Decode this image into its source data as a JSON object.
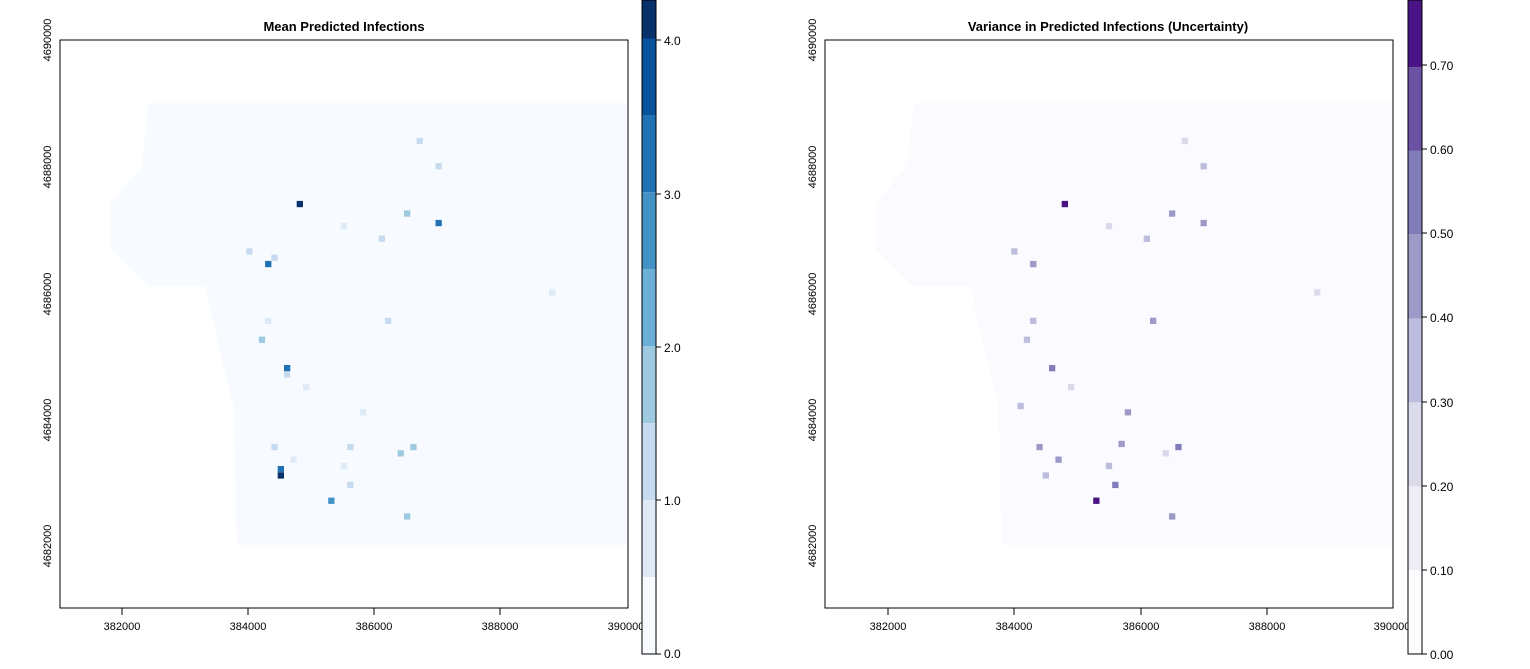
{
  "chart_data": [
    {
      "type": "heatmap",
      "title": "Mean Predicted Infections",
      "xlim": [
        381000,
        390000
      ],
      "ylim": [
        4681000,
        4690000
      ],
      "x_ticks": [
        382000,
        384000,
        386000,
        388000,
        390000
      ],
      "x_tick_labels": [
        "382000",
        "384000",
        "386000",
        "388000",
        "390000"
      ],
      "y_ticks": [
        4682000,
        4684000,
        4686000,
        4688000,
        4690000
      ],
      "y_tick_labels": [
        "4682000",
        "4684000",
        "4686000",
        "4688000",
        "4690000"
      ],
      "grid": false,
      "legend": "right",
      "background_color": "#f7fbff",
      "colorbar": {
        "range": [
          0,
          4.25
        ],
        "ticks": [
          0,
          1,
          2,
          3,
          4
        ],
        "tick_labels": [
          "0.0",
          "1.0",
          "2.0",
          "3.0",
          "4.0"
        ],
        "breaks": [
          0,
          0.5,
          1.0,
          1.5,
          2.0,
          2.5,
          3.0,
          3.5,
          4.0,
          4.25
        ],
        "colors": [
          "#f7fbff",
          "#deebf7",
          "#c6dbef",
          "#9ecae1",
          "#6baed6",
          "#4292c6",
          "#2171b5",
          "#08519c",
          "#08306b"
        ]
      },
      "hotspots": [
        {
          "x": 384800,
          "y": 4687400,
          "value": 4.2
        },
        {
          "x": 387000,
          "y": 4687100,
          "value": 3.0
        },
        {
          "x": 387000,
          "y": 4688000,
          "value": 1.4
        },
        {
          "x": 386700,
          "y": 4688400,
          "value": 1.2
        },
        {
          "x": 386500,
          "y": 4687250,
          "value": 1.5
        },
        {
          "x": 384300,
          "y": 4686450,
          "value": 3.2
        },
        {
          "x": 384000,
          "y": 4686650,
          "value": 1.3
        },
        {
          "x": 384400,
          "y": 4686550,
          "value": 1.0
        },
        {
          "x": 386100,
          "y": 4686850,
          "value": 1.0
        },
        {
          "x": 385500,
          "y": 4687050,
          "value": 0.8
        },
        {
          "x": 384200,
          "y": 4685250,
          "value": 1.6
        },
        {
          "x": 384300,
          "y": 4685550,
          "value": 0.8
        },
        {
          "x": 386200,
          "y": 4685550,
          "value": 1.2
        },
        {
          "x": 388800,
          "y": 4686000,
          "value": 0.7
        },
        {
          "x": 384600,
          "y": 4684800,
          "value": 3.2
        },
        {
          "x": 384600,
          "y": 4684700,
          "value": 1.0
        },
        {
          "x": 384900,
          "y": 4684500,
          "value": 0.9
        },
        {
          "x": 385600,
          "y": 4683550,
          "value": 1.1
        },
        {
          "x": 385800,
          "y": 4684100,
          "value": 0.6
        },
        {
          "x": 384400,
          "y": 4683550,
          "value": 1.2
        },
        {
          "x": 384700,
          "y": 4683350,
          "value": 0.8
        },
        {
          "x": 386600,
          "y": 4683550,
          "value": 1.6
        },
        {
          "x": 386400,
          "y": 4683450,
          "value": 1.7
        },
        {
          "x": 384500,
          "y": 4683100,
          "value": 4.2
        },
        {
          "x": 384500,
          "y": 4683200,
          "value": 3.0
        },
        {
          "x": 385300,
          "y": 4682700,
          "value": 2.7
        },
        {
          "x": 385600,
          "y": 4682950,
          "value": 1.2
        },
        {
          "x": 385500,
          "y": 4683250,
          "value": 0.8
        },
        {
          "x": 386500,
          "y": 4682450,
          "value": 1.6
        }
      ]
    },
    {
      "type": "heatmap",
      "title": "Variance in Predicted Infections (Uncertainty)",
      "xlim": [
        381000,
        390000
      ],
      "ylim": [
        4681000,
        4690000
      ],
      "x_ticks": [
        382000,
        384000,
        386000,
        388000,
        390000
      ],
      "x_tick_labels": [
        "382000",
        "384000",
        "386000",
        "388000",
        "390000"
      ],
      "y_ticks": [
        4682000,
        4684000,
        4686000,
        4688000,
        4690000
      ],
      "y_tick_labels": [
        "4682000",
        "4684000",
        "4686000",
        "4688000",
        "4690000"
      ],
      "grid": false,
      "legend": "right",
      "background_color": "#fbfaff",
      "colorbar": {
        "range": [
          0,
          0.78
        ],
        "ticks": [
          0,
          0.1,
          0.2,
          0.3,
          0.4,
          0.5,
          0.6,
          0.7
        ],
        "tick_labels": [
          "0.00",
          "0.10",
          "0.20",
          "0.30",
          "0.40",
          "0.50",
          "0.60",
          "0.70"
        ],
        "breaks": [
          0,
          0.1,
          0.2,
          0.3,
          0.4,
          0.5,
          0.6,
          0.7,
          0.78
        ],
        "colors": [
          "#fcfbfd",
          "#efedf5",
          "#dadaeb",
          "#bcbddc",
          "#9e9ac8",
          "#807dba",
          "#6a51a3",
          "#4a1486"
        ]
      },
      "hotspots": [
        {
          "x": 384800,
          "y": 4687400,
          "value": 0.75
        },
        {
          "x": 387000,
          "y": 4687100,
          "value": 0.45
        },
        {
          "x": 387000,
          "y": 4688000,
          "value": 0.3
        },
        {
          "x": 386700,
          "y": 4688400,
          "value": 0.2
        },
        {
          "x": 386500,
          "y": 4687250,
          "value": 0.4
        },
        {
          "x": 384300,
          "y": 4686450,
          "value": 0.45
        },
        {
          "x": 384000,
          "y": 4686650,
          "value": 0.3
        },
        {
          "x": 386100,
          "y": 4686850,
          "value": 0.3
        },
        {
          "x": 385500,
          "y": 4687050,
          "value": 0.2
        },
        {
          "x": 384200,
          "y": 4685250,
          "value": 0.3
        },
        {
          "x": 384300,
          "y": 4685550,
          "value": 0.3
        },
        {
          "x": 386200,
          "y": 4685550,
          "value": 0.45
        },
        {
          "x": 388800,
          "y": 4686000,
          "value": 0.2
        },
        {
          "x": 384600,
          "y": 4684800,
          "value": 0.5
        },
        {
          "x": 384900,
          "y": 4684500,
          "value": 0.25
        },
        {
          "x": 385800,
          "y": 4684100,
          "value": 0.45
        },
        {
          "x": 384400,
          "y": 4683550,
          "value": 0.4
        },
        {
          "x": 384700,
          "y": 4683350,
          "value": 0.45
        },
        {
          "x": 386600,
          "y": 4683550,
          "value": 0.55
        },
        {
          "x": 386400,
          "y": 4683450,
          "value": 0.2
        },
        {
          "x": 384500,
          "y": 4683100,
          "value": 0.3
        },
        {
          "x": 385300,
          "y": 4682700,
          "value": 0.75
        },
        {
          "x": 385600,
          "y": 4682950,
          "value": 0.5
        },
        {
          "x": 385500,
          "y": 4683250,
          "value": 0.3
        },
        {
          "x": 385700,
          "y": 4683600,
          "value": 0.4
        },
        {
          "x": 386500,
          "y": 4682450,
          "value": 0.45
        },
        {
          "x": 384100,
          "y": 4684200,
          "value": 0.35
        }
      ]
    }
  ]
}
